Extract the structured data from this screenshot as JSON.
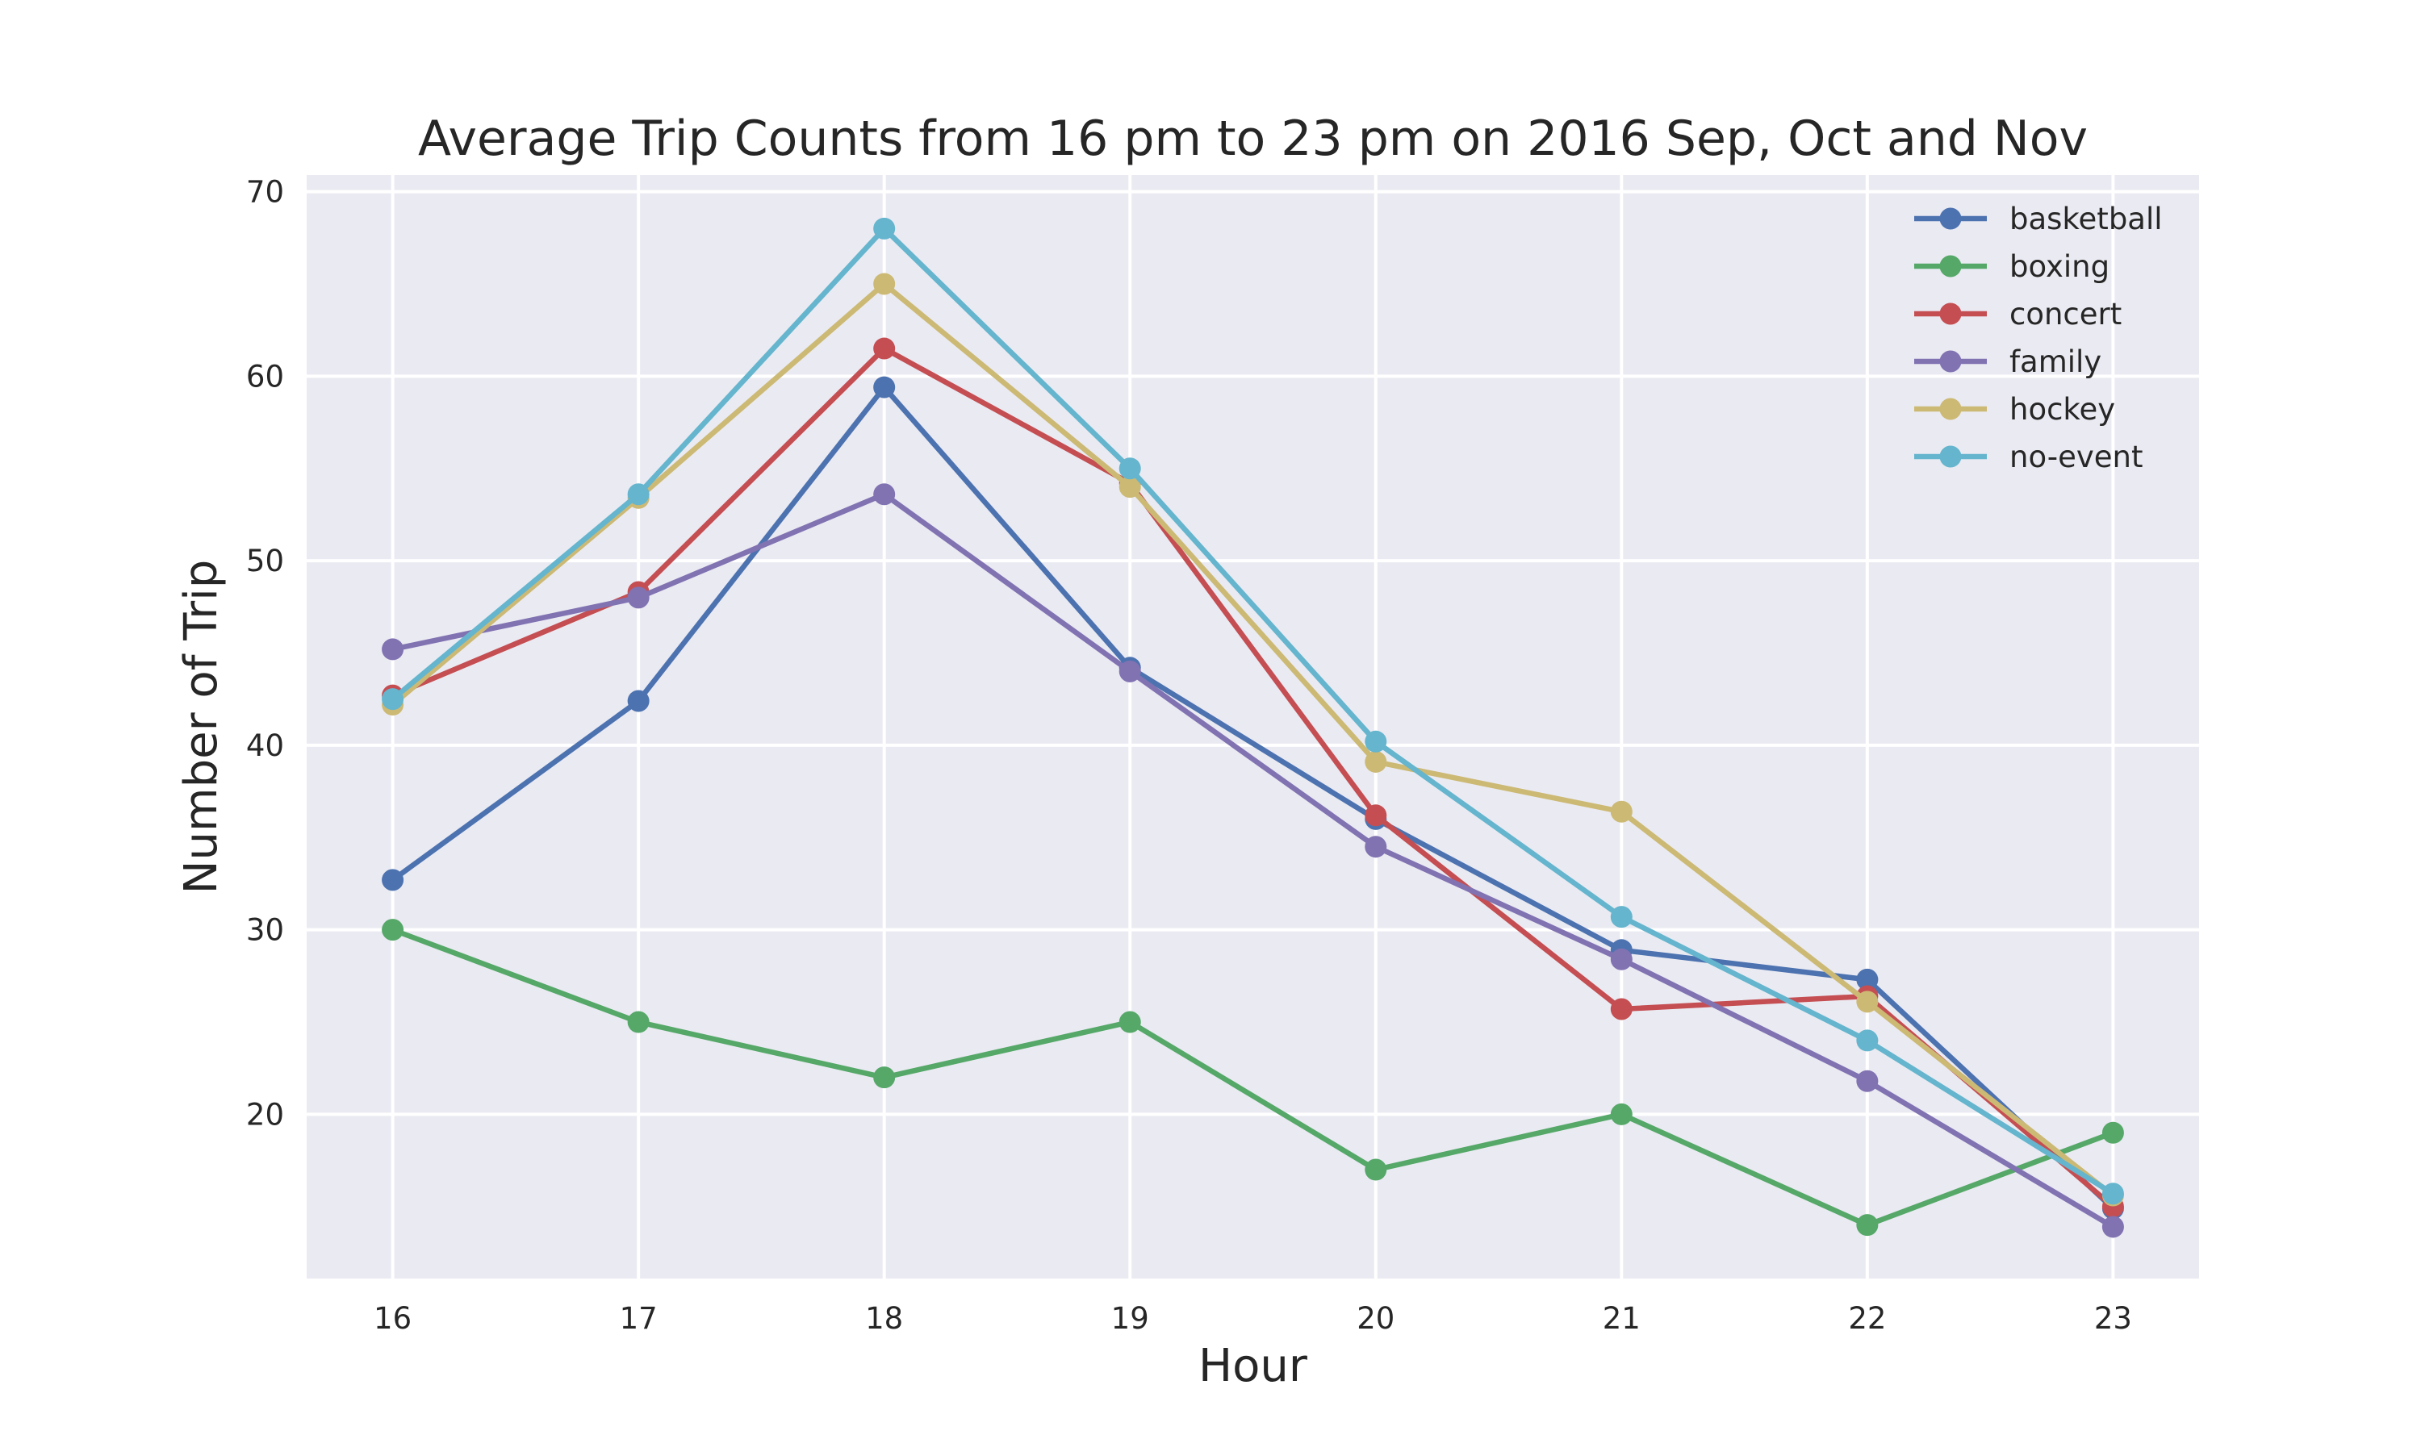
{
  "chart_data": {
    "type": "line",
    "title": "Average Trip Counts from 16 pm to 23 pm on 2016 Sep, Oct and Nov",
    "xlabel": "Hour",
    "ylabel": "Number of Trip",
    "x": [
      16,
      17,
      18,
      19,
      20,
      21,
      22,
      23
    ],
    "xlim": [
      15.65,
      23.35
    ],
    "ylim": [
      11.1,
      70.9
    ],
    "yticks": [
      20,
      30,
      40,
      50,
      60,
      70
    ],
    "grid": true,
    "legend_position": "top-right",
    "background": "#eaeaf2",
    "series": [
      {
        "name": "basketball",
        "color": "#4c72b0",
        "values": [
          32.7,
          42.4,
          59.4,
          44.2,
          36.0,
          28.9,
          27.3,
          14.9
        ]
      },
      {
        "name": "boxing",
        "color": "#55a868",
        "values": [
          30.0,
          25.0,
          22.0,
          25.0,
          17.0,
          20.0,
          14.0,
          19.0
        ]
      },
      {
        "name": "concert",
        "color": "#c44e52",
        "values": [
          42.7,
          48.3,
          61.5,
          54.2,
          36.2,
          25.7,
          26.4,
          15.0
        ]
      },
      {
        "name": "family",
        "color": "#8172b2",
        "values": [
          45.2,
          48.0,
          53.6,
          44.0,
          34.5,
          28.4,
          21.8,
          13.9
        ]
      },
      {
        "name": "hockey",
        "color": "#ccb974",
        "values": [
          42.2,
          53.4,
          65.0,
          54.0,
          39.1,
          36.4,
          26.1,
          15.6
        ]
      },
      {
        "name": "no-event",
        "color": "#64b5cd",
        "values": [
          42.5,
          53.6,
          68.0,
          55.0,
          40.2,
          30.7,
          24.0,
          15.7
        ]
      }
    ]
  }
}
